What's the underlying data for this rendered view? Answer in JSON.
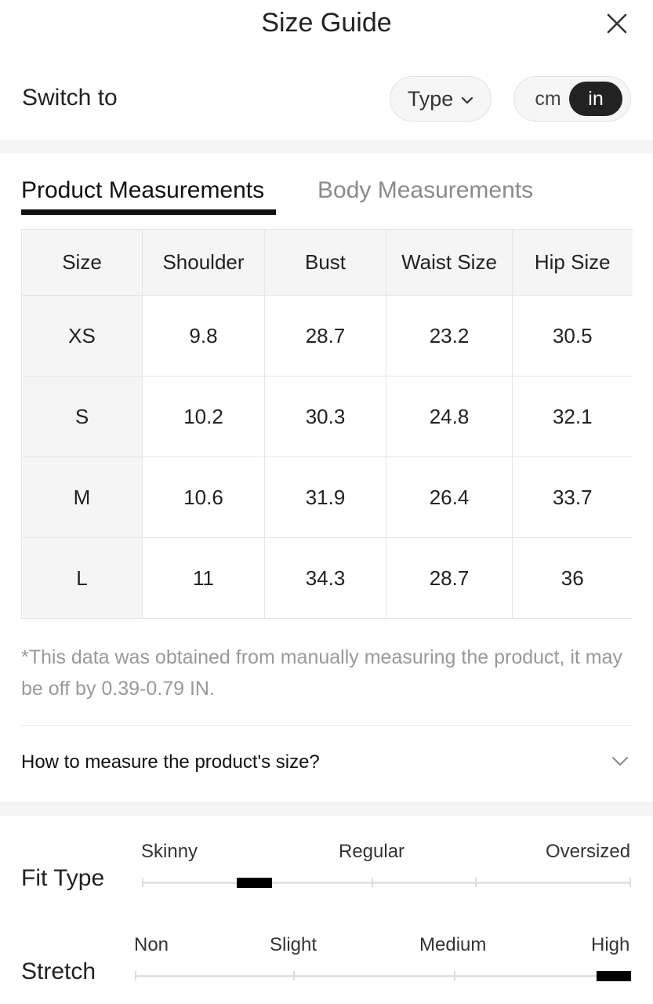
{
  "header": {
    "title": "Size Guide",
    "close_icon": "close-icon"
  },
  "switch": {
    "label": "Switch to",
    "type_button": "Type",
    "units": {
      "cm": "cm",
      "in": "in",
      "selected": "in"
    }
  },
  "tabs": [
    {
      "label": "Product Measurements",
      "active": true
    },
    {
      "label": "Body Measurements",
      "active": false
    }
  ],
  "table": {
    "headers": [
      "Size",
      "Shoulder",
      "Bust",
      "Waist Size",
      "Hip Size"
    ],
    "rows": [
      [
        "XS",
        "9.8",
        "28.7",
        "23.2",
        "30.5"
      ],
      [
        "S",
        "10.2",
        "30.3",
        "24.8",
        "32.1"
      ],
      [
        "M",
        "10.6",
        "31.9",
        "26.4",
        "33.7"
      ],
      [
        "L",
        "11",
        "34.3",
        "28.7",
        "36"
      ]
    ]
  },
  "note": "*This data was obtained from manually measuring the product, it may be off by 0.39-0.79 IN.",
  "measure_link": {
    "label": "How to measure the product's size?",
    "icon": "chevron-down-icon"
  },
  "fit_type": {
    "title": "Fit Type",
    "labels": [
      "Skinny",
      "Regular",
      "Oversized"
    ],
    "marker_position": 0.23
  },
  "stretch": {
    "title": "Stretch",
    "labels": [
      "Non",
      "Slight",
      "Medium",
      "High"
    ],
    "marker_position": 0.97
  },
  "colors": {
    "accent": "#222222",
    "muted": "#999999",
    "surface": "#f5f5f5"
  }
}
